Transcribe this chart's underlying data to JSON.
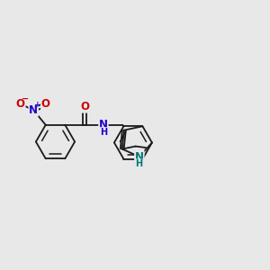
{
  "bg_color": "#e8e8e8",
  "bond_color": "#1a1a1a",
  "bond_width": 1.3,
  "O_color": "#cc0000",
  "N_blue_color": "#2200cc",
  "N_teal_color": "#007777",
  "font_size_atom": 8.5,
  "font_size_h": 7.0,
  "xlim": [
    0,
    10
  ],
  "ylim": [
    1,
    9
  ]
}
